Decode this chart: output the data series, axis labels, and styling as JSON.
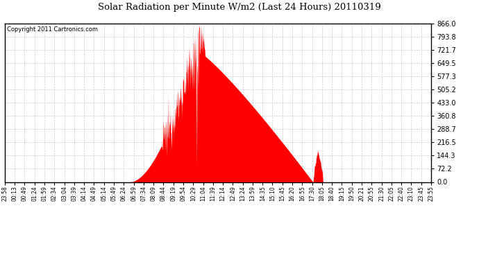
{
  "title": "Solar Radiation per Minute W/m2 (Last 24 Hours) 20110319",
  "copyright": "Copyright 2011 Cartronics.com",
  "background_color": "#ffffff",
  "plot_bg_color": "#ffffff",
  "bar_color": "#ff0000",
  "dashed_line_color": "#ff0000",
  "grid_color": "#cccccc",
  "y_max": 866.0,
  "y_min": 0.0,
  "y_ticks": [
    0.0,
    72.2,
    144.3,
    216.5,
    288.7,
    360.8,
    433.0,
    505.2,
    577.3,
    649.5,
    721.7,
    793.8,
    866.0
  ],
  "x_labels": [
    "23:58",
    "00:13",
    "00:49",
    "01:24",
    "01:59",
    "02:34",
    "03:04",
    "03:39",
    "04:14",
    "04:49",
    "05:14",
    "05:49",
    "06:24",
    "06:59",
    "07:34",
    "08:09",
    "08:44",
    "09:19",
    "09:54",
    "10:29",
    "11:04",
    "11:39",
    "12:14",
    "12:49",
    "13:24",
    "13:59",
    "14:35",
    "15:10",
    "15:45",
    "16:20",
    "16:55",
    "17:30",
    "18:05",
    "18:40",
    "19:15",
    "19:50",
    "20:21",
    "20:55",
    "21:30",
    "22:05",
    "22:40",
    "23:10",
    "23:45",
    "23:55"
  ],
  "num_points": 1440
}
